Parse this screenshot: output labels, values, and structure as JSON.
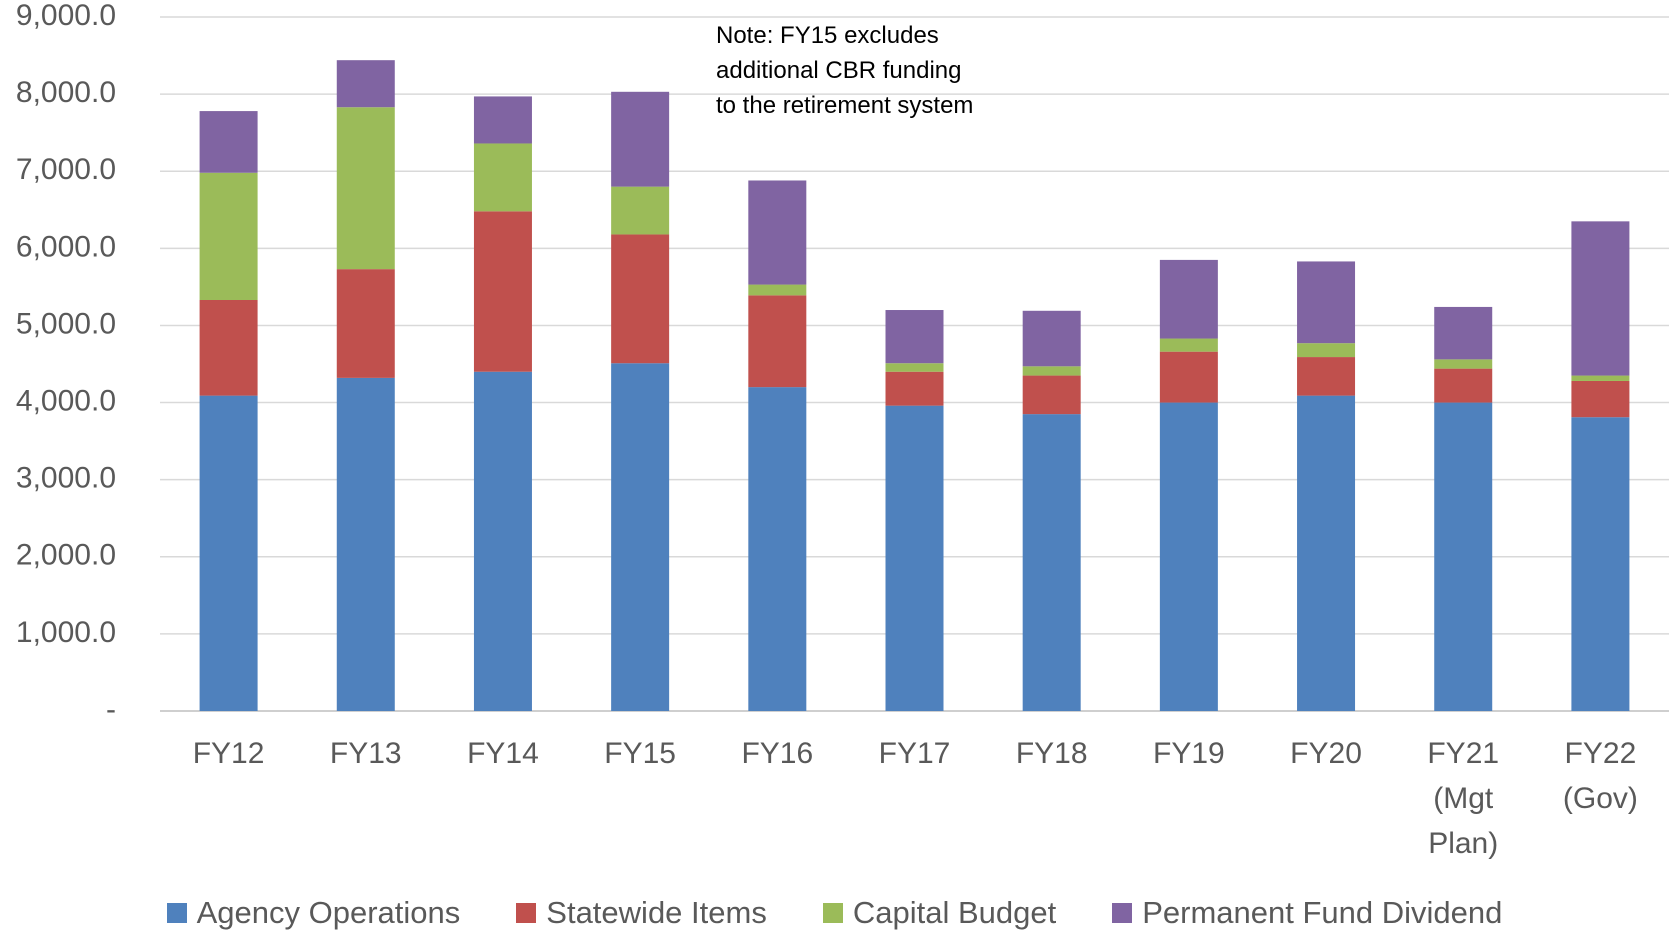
{
  "chart_data": {
    "type": "stacked_bar",
    "annotation": "Note: FY15 excludes additional CBR funding to the retirement system",
    "categories": [
      "FY12",
      "FY13",
      "FY14",
      "FY15",
      "FY16",
      "FY17",
      "FY18",
      "FY19",
      "FY20",
      "FY21 (Mgt Plan)",
      "FY22 (Gov)"
    ],
    "series": [
      {
        "name": "Agency Operations",
        "color": "#4f81bd",
        "values": [
          4090,
          4320,
          4400,
          4510,
          4200,
          3960,
          3850,
          4000,
          4090,
          4000,
          3810
        ]
      },
      {
        "name": "Statewide Items",
        "color": "#c0504d",
        "values": [
          1240,
          1410,
          2080,
          1670,
          1190,
          440,
          500,
          660,
          500,
          440,
          470
        ]
      },
      {
        "name": "Capital Budget",
        "color": "#9bbb59",
        "values": [
          1650,
          2100,
          880,
          620,
          140,
          110,
          120,
          170,
          180,
          120,
          70
        ]
      },
      {
        "name": "Permanent Fund Dividend",
        "color": "#8064a2",
        "values": [
          800,
          610,
          610,
          1230,
          1350,
          690,
          720,
          1020,
          1060,
          680,
          2000
        ]
      }
    ],
    "ylim": [
      0,
      9000
    ],
    "yticks": [
      {
        "value": 0,
        "label": "-"
      },
      {
        "value": 1000,
        "label": "1,000.0"
      },
      {
        "value": 2000,
        "label": "2,000.0"
      },
      {
        "value": 3000,
        "label": "3,000.0"
      },
      {
        "value": 4000,
        "label": "4,000.0"
      },
      {
        "value": 5000,
        "label": "5,000.0"
      },
      {
        "value": 6000,
        "label": "6,000.0"
      },
      {
        "value": 7000,
        "label": "7,000.0"
      },
      {
        "value": 8000,
        "label": "8,000.0"
      },
      {
        "value": 9000,
        "label": "9,000.0"
      }
    ],
    "grid": true,
    "legend": "bottom"
  }
}
